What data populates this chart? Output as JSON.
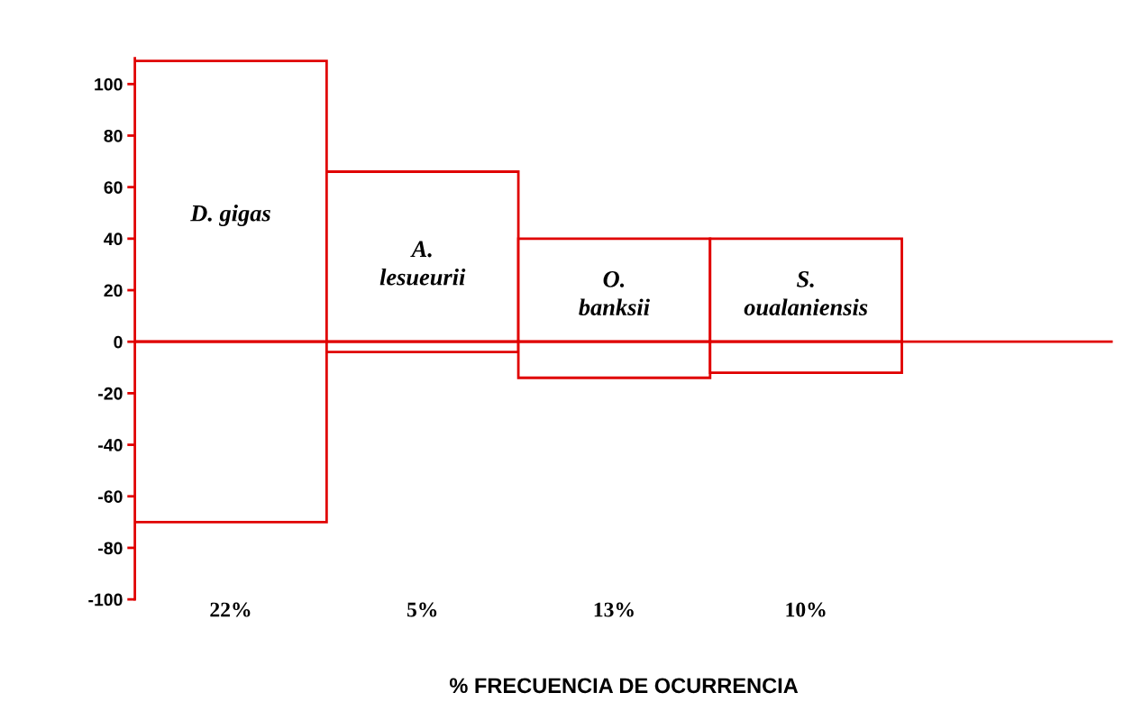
{
  "chart_data": {
    "type": "bar",
    "xlabel": "% FRECUENCIA DE OCURRENCIA",
    "categories": [
      "22%",
      "5%",
      "13%",
      "10%"
    ],
    "stacked": true,
    "series": [
      {
        "color": "#e00000",
        "values": [
          109,
          66,
          40,
          40
        ]
      },
      {
        "color": "#e00000",
        "values": [
          -70,
          -4,
          -14,
          -12
        ]
      }
    ],
    "ylim": [
      -100,
      110
    ],
    "yticks": [
      -100,
      -80,
      -60,
      -40,
      -20,
      0,
      20,
      40,
      60,
      80,
      100
    ],
    "grid": false,
    "ref_lines": [
      {
        "axis": "y",
        "value": 0,
        "color": "#e00000"
      }
    ],
    "annotations": [
      "D. gigas",
      "A.\nlesueurii",
      "O.\nbanksii",
      "S.\noualaniensis"
    ]
  }
}
